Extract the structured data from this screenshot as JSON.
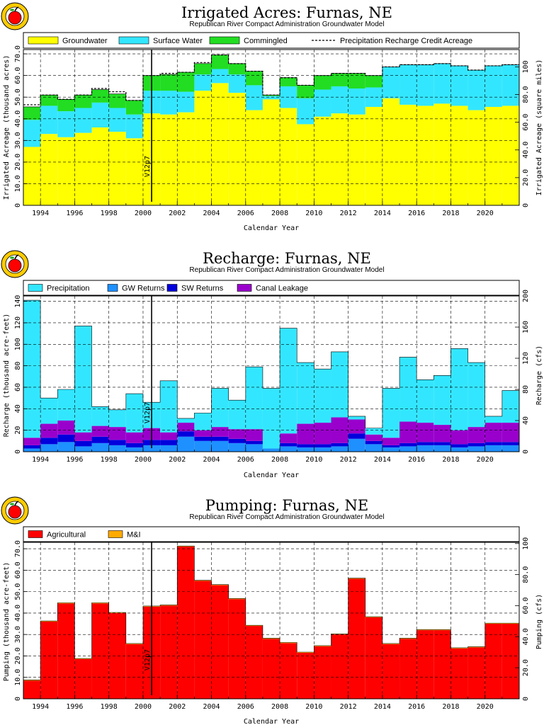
{
  "colors": {
    "groundwater": "#ffff00",
    "surface_water": "#33e6ff",
    "commingled": "#22dd22",
    "precipitation": "#33e6ff",
    "gw_returns": "#1e90ff",
    "sw_returns": "#0000dd",
    "canal_leakage": "#9900cc",
    "agricultural": "#ff0000",
    "mi": "#ffaa00",
    "logo_apple": "#ff0000",
    "logo_ring": "#ffcc00"
  },
  "icons": [
    "apple-logo-icon",
    "apple-logo-icon",
    "apple-logo-icon"
  ],
  "chart_data": [
    {
      "type": "area",
      "title": "Irrigated Acres: Furnas, NE",
      "subtitle": "Republican River Compact Administration Groundwater Model",
      "xlabel": "Calendar Year",
      "ylabel": "Irrigated Acreage (thousand acres)",
      "y2label": "Irrigated Acreage (square miles)",
      "xlim": [
        1993,
        2022
      ],
      "ylim": [
        0,
        72
      ],
      "y2lim": [
        0,
        112.5
      ],
      "grid": true,
      "stacked": true,
      "legend_position": "top",
      "xticks": [
        1994,
        1996,
        1998,
        2000,
        2002,
        2004,
        2006,
        2008,
        2010,
        2012,
        2014,
        2016,
        2018,
        2020
      ],
      "yticks": [
        0,
        10,
        20,
        30,
        40,
        50,
        60,
        70
      ],
      "ytick_labels": [
        "0",
        "10.0",
        "20.0",
        "30.0",
        "40.0",
        "50.0",
        "60.0",
        "70.0"
      ],
      "y2ticks": [
        0,
        20,
        40,
        60,
        80,
        100
      ],
      "y2tick_labels": [
        "0",
        "20.0",
        "40.0",
        "60.0",
        "80.0",
        "100"
      ],
      "x": [
        1993,
        1994,
        1995,
        1996,
        1997,
        1998,
        1999,
        2000,
        2001,
        2002,
        2003,
        2004,
        2005,
        2006,
        2007,
        2008,
        2009,
        2010,
        2011,
        2012,
        2013,
        2014,
        2015,
        2016,
        2017,
        2018,
        2019,
        2020,
        2021
      ],
      "series": [
        {
          "name": "Groundwater",
          "color_key": "groundwater",
          "values": [
            27,
            33,
            31.5,
            33.5,
            36,
            34,
            31,
            42.5,
            42,
            43,
            53,
            56.5,
            52,
            44,
            49,
            45,
            37.5,
            41,
            42.5,
            42,
            45.5,
            49.5,
            46.5,
            46,
            47,
            46,
            44,
            45.5,
            46
          ]
        },
        {
          "name": "Surface Water",
          "color_key": "surface_water",
          "values": [
            12.5,
            13,
            12,
            11.5,
            11.5,
            11,
            11,
            10.5,
            11,
            9.5,
            7.5,
            6.5,
            8.5,
            11.5,
            1.5,
            10,
            12,
            12.5,
            12.5,
            12,
            9,
            14.5,
            18.5,
            19,
            18.5,
            18.5,
            18.5,
            19,
            19
          ]
        },
        {
          "name": "Commingled",
          "color_key": "commingled",
          "values": [
            6,
            5,
            5.5,
            6,
            6,
            6.5,
            6.5,
            7,
            7.5,
            9,
            5,
            6.5,
            5,
            6.5,
            0.5,
            4,
            6,
            6.5,
            6,
            7,
            5.5,
            0,
            0,
            0,
            0,
            0,
            0,
            0,
            0
          ]
        }
      ],
      "line_series": {
        "name": "Precipitation Recharge Credit Acreage",
        "style": "dashed",
        "values": [
          46.5,
          51,
          49,
          51,
          54,
          52.5,
          48.5,
          60,
          61,
          61.5,
          66,
          69.5,
          65.5,
          62,
          51,
          59,
          55.5,
          60,
          61,
          61,
          60,
          64,
          65,
          65,
          65.5,
          64.5,
          62.5,
          64.5,
          65
        ]
      },
      "annotation": {
        "text": "V12p7",
        "x": 2000.5
      }
    },
    {
      "type": "area",
      "title": "Recharge: Furnas, NE",
      "subtitle": "Republican River Compact Administration Groundwater Model",
      "xlabel": "Calendar Year",
      "ylabel": "Recharge (thousand acre-feet)",
      "y2label": "Recharge (cfs)",
      "xlim": [
        1993,
        2022
      ],
      "ylim": [
        0,
        145
      ],
      "y2lim": [
        0,
        200
      ],
      "grid": true,
      "stacked": true,
      "legend_position": "top",
      "xticks": [
        1994,
        1996,
        1998,
        2000,
        2002,
        2004,
        2006,
        2008,
        2010,
        2012,
        2014,
        2016,
        2018,
        2020
      ],
      "yticks": [
        0,
        20,
        40,
        60,
        80,
        100,
        120,
        140
      ],
      "ytick_labels": [
        "0",
        "20",
        "40",
        "60",
        "80",
        "100",
        "120",
        "140"
      ],
      "y2ticks": [
        0,
        40,
        80,
        120,
        160,
        200
      ],
      "y2tick_labels": [
        "0",
        "40",
        "80",
        "120",
        "160",
        "200"
      ],
      "x": [
        1993,
        1994,
        1995,
        1996,
        1997,
        1998,
        1999,
        2000,
        2001,
        2002,
        2003,
        2004,
        2005,
        2006,
        2007,
        2008,
        2009,
        2010,
        2011,
        2012,
        2013,
        2014,
        2015,
        2016,
        2017,
        2018,
        2019,
        2020,
        2021
      ],
      "series": [
        {
          "name": "GW Returns",
          "color_key": "gw_returns",
          "values": [
            3,
            7,
            9,
            5,
            8,
            6,
            4,
            6,
            6,
            14,
            10,
            10,
            8,
            7,
            3,
            5,
            4,
            4,
            5,
            12,
            7,
            4,
            5,
            6,
            6,
            4,
            5,
            6,
            6
          ]
        },
        {
          "name": "SW Returns",
          "color_key": "sw_returns",
          "values": [
            3,
            6,
            7,
            5,
            6,
            5,
            4,
            5,
            5,
            5,
            4,
            4,
            4,
            3,
            0,
            3,
            3,
            3,
            3,
            5,
            3,
            2,
            3,
            3,
            3,
            3,
            3,
            3,
            3
          ]
        },
        {
          "name": "Canal Leakage",
          "color_key": "canal_leakage",
          "values": [
            7,
            13,
            13,
            8,
            10,
            12,
            10,
            11,
            7,
            8,
            6,
            9,
            9,
            11,
            0,
            9,
            19,
            20,
            24,
            13,
            6,
            7,
            20,
            18,
            16,
            13,
            15,
            18,
            18
          ]
        },
        {
          "name": "Precipitation",
          "color_key": "precipitation",
          "values": [
            128,
            24,
            29,
            99,
            18,
            16,
            36,
            24,
            48,
            4,
            16,
            36,
            27,
            58,
            56,
            98,
            57,
            50,
            61,
            3,
            6,
            46,
            60,
            40,
            46,
            76,
            60,
            6,
            30
          ]
        }
      ],
      "annotation": {
        "text": "V12p7",
        "x": 2000.5
      }
    },
    {
      "type": "area",
      "title": "Pumping: Furnas, NE",
      "subtitle": "Republican River Compact Administration Groundwater Model",
      "xlabel": "Calendar Year",
      "ylabel": "Pumping (thousand acre-feet)",
      "y2label": "Pumping (cfs)",
      "xlim": [
        1993,
        2022
      ],
      "ylim": [
        0,
        73
      ],
      "y2lim": [
        0,
        100.8
      ],
      "grid": true,
      "stacked": true,
      "legend_position": "top",
      "xticks": [
        1994,
        1996,
        1998,
        2000,
        2002,
        2004,
        2006,
        2008,
        2010,
        2012,
        2014,
        2016,
        2018,
        2020
      ],
      "yticks": [
        0,
        10,
        20,
        30,
        40,
        50,
        60,
        70
      ],
      "ytick_labels": [
        "0",
        "10.0",
        "20.0",
        "30.0",
        "40.0",
        "50.0",
        "60.0",
        "70.0"
      ],
      "y2ticks": [
        0,
        20,
        40,
        60,
        80,
        100
      ],
      "y2tick_labels": [
        "0",
        "20.0",
        "40.0",
        "60.0",
        "80.0",
        "100"
      ],
      "x": [
        1993,
        1994,
        1995,
        1996,
        1997,
        1998,
        1999,
        2000,
        2001,
        2002,
        2003,
        2004,
        2005,
        2006,
        2007,
        2008,
        2009,
        2010,
        2011,
        2012,
        2013,
        2014,
        2015,
        2016,
        2017,
        2018,
        2019,
        2020,
        2021
      ],
      "series": [
        {
          "name": "Agricultural",
          "color_key": "agricultural",
          "values": [
            8.5,
            36,
            44.5,
            18.5,
            44.5,
            40,
            25.5,
            43,
            43.5,
            71,
            55,
            53,
            46.5,
            34,
            28,
            26,
            21.5,
            24.5,
            30,
            56,
            38,
            25.5,
            28,
            32,
            32,
            23.5,
            24,
            35,
            35
          ]
        },
        {
          "name": "M&I",
          "color_key": "mi",
          "values": [
            0.3,
            0.3,
            0.3,
            0.3,
            0.3,
            0.3,
            0.3,
            0.3,
            0.3,
            0.3,
            0.3,
            0.3,
            0.3,
            0.3,
            0.3,
            0.3,
            0.3,
            0.3,
            0.3,
            0.3,
            0.3,
            0.3,
            0.3,
            0.3,
            0.3,
            0.3,
            0.3,
            0.3,
            0.3
          ]
        }
      ],
      "annotation": {
        "text": "V12p7",
        "x": 2000.5
      }
    }
  ]
}
